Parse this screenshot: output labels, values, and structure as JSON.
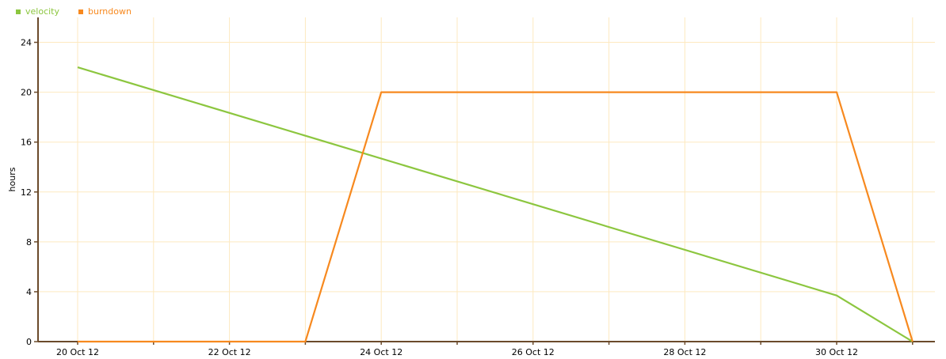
{
  "chart_data": {
    "type": "line",
    "x": [
      "20 Oct 12",
      "21 Oct 12",
      "22 Oct 12",
      "23 Oct 12",
      "24 Oct 12",
      "25 Oct 12",
      "26 Oct 12",
      "27 Oct 12",
      "28 Oct 12",
      "29 Oct 12",
      "30 Oct 12",
      "31 Oct 12"
    ],
    "x_tick_labels": [
      "20 Oct 12",
      "22 Oct 12",
      "24 Oct 12",
      "26 Oct 12",
      "28 Oct 12",
      "30 Oct 12"
    ],
    "ylabel": "hours",
    "ylim": [
      0,
      26
    ],
    "y_ticks": [
      0,
      4,
      8,
      12,
      16,
      20,
      24
    ],
    "grid": true,
    "legend": "top-left",
    "series": [
      {
        "name": "velocity",
        "color": "#8cc63f",
        "values": [
          22,
          null,
          null,
          null,
          null,
          null,
          null,
          null,
          null,
          null,
          3.7,
          0
        ]
      },
      {
        "name": "burndown",
        "color": "#f7891f",
        "values": [
          0,
          null,
          null,
          0,
          20,
          null,
          null,
          null,
          null,
          null,
          20,
          0
        ]
      }
    ]
  }
}
